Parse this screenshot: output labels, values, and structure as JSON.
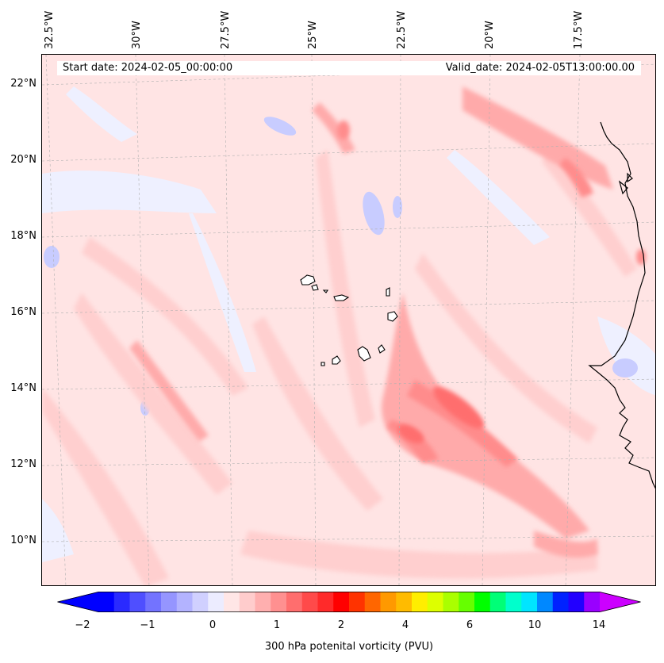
{
  "map": {
    "title_left": "Start date: 2024-02-05_00:00:00",
    "title_right": "Valid_date: 2024-02-05T13:00:00.00",
    "lon_labels": [
      "32.5°W",
      "30°W",
      "27.5°W",
      "25°W",
      "22.5°W",
      "20°W",
      "17.5°W"
    ],
    "lat_labels": [
      "22°N",
      "20°N",
      "18°N",
      "16°N",
      "14°N",
      "12°N",
      "10°N"
    ],
    "variable": "300 hPa potenital vorticity (PVU)"
  },
  "colorbar": {
    "ticks": [
      "−2",
      "−1",
      "0",
      "1",
      "2",
      "4",
      "6",
      "10",
      "14"
    ],
    "colors": [
      "#0000ff",
      "#2a2aff",
      "#4f4fff",
      "#7373ff",
      "#9595ff",
      "#b3b3ff",
      "#d0d0ff",
      "#ececff",
      "#ffe6e6",
      "#ffcccc",
      "#ffafaf",
      "#ff9090",
      "#ff6e6e",
      "#ff4a4a",
      "#ff2a2a",
      "#ff0000",
      "#ff3300",
      "#ff6600",
      "#ff9900",
      "#ffbb00",
      "#ffee00",
      "#ddff00",
      "#aaff00",
      "#66ff00",
      "#00ff00",
      "#00ff77",
      "#00ffcc",
      "#00e5ff",
      "#0088ff",
      "#0022ff",
      "#2200ff",
      "#9900ff"
    ],
    "under_color": "#0000ff",
    "over_color": "#cc00ff"
  }
}
